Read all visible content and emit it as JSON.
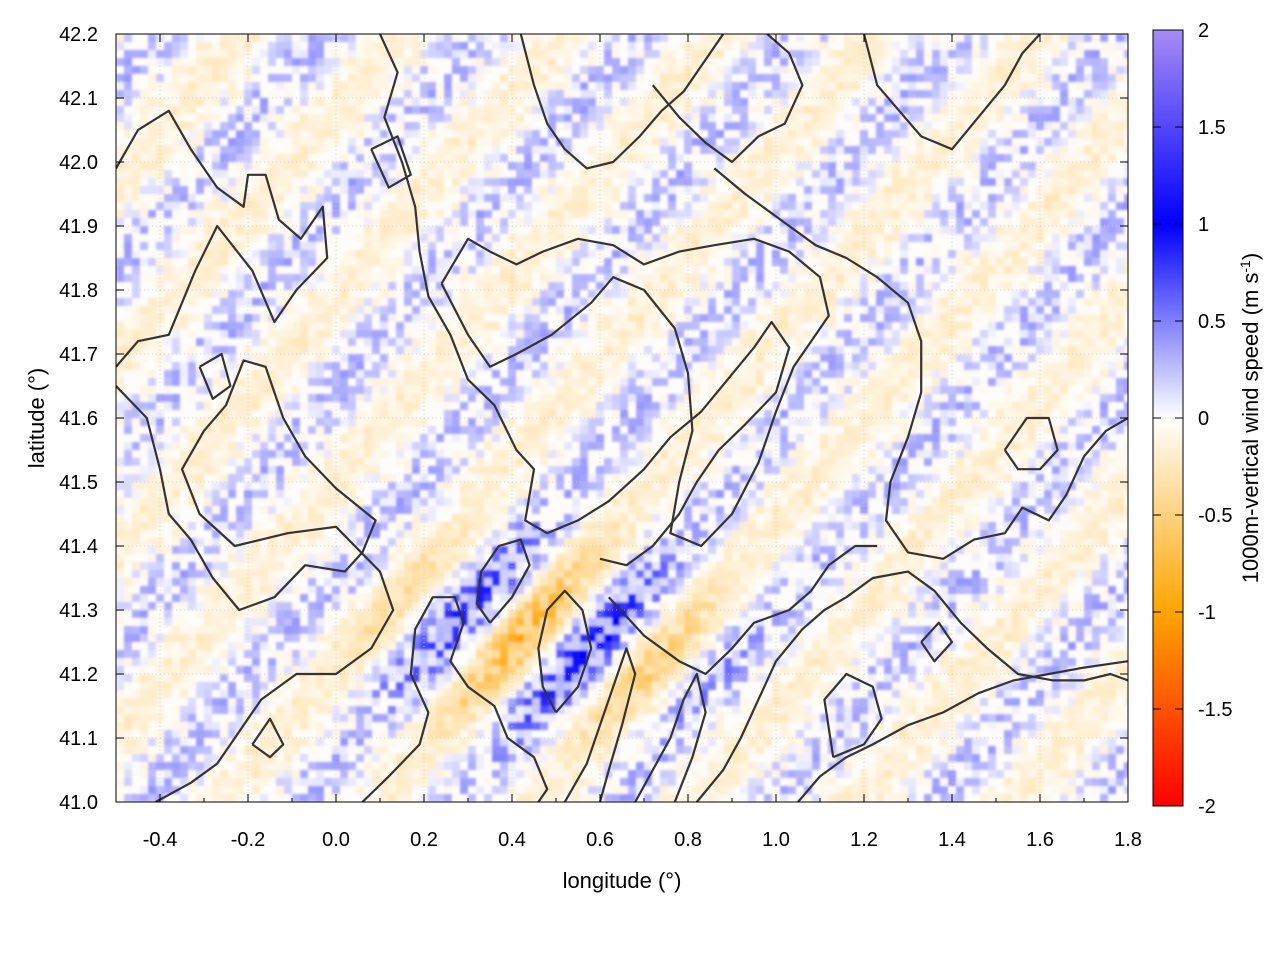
{
  "chart_data": {
    "type": "heatmap",
    "title": "",
    "xlabel": "longitude (°)",
    "ylabel": "latitude (°)",
    "colorbar_label_main": "1000m-vertical wind speed (m s",
    "colorbar_label_sup": "-1",
    "colorbar_label_tail": ")",
    "xlim": [
      -0.5,
      1.8
    ],
    "ylim": [
      41.0,
      42.2
    ],
    "clim": [
      -2,
      2
    ],
    "x_ticks": [
      -0.4,
      -0.2,
      0.0,
      0.2,
      0.4,
      0.6,
      0.8,
      1.0,
      1.2,
      1.4,
      1.6,
      1.8
    ],
    "x_tick_labels": [
      "-0.4",
      "-0.2",
      "0.0",
      "0.2",
      "0.4",
      "0.6",
      "0.8",
      "1.0",
      "1.2",
      "1.4",
      "1.6",
      "1.8"
    ],
    "y_ticks": [
      41.0,
      41.1,
      41.2,
      41.3,
      41.4,
      41.5,
      41.6,
      41.7,
      41.8,
      41.9,
      42.0,
      42.1,
      42.2
    ],
    "y_tick_labels": [
      "41.0",
      "41.1",
      "41.2",
      "41.3",
      "41.4",
      "41.5",
      "41.6",
      "41.7",
      "41.8",
      "41.9",
      "42.0",
      "42.1",
      "42.2"
    ],
    "colorbar_ticks": [
      2,
      1.5,
      1,
      0.5,
      0,
      -0.5,
      -1,
      -1.5,
      -2
    ],
    "colorbar_tick_labels": [
      "2",
      "1.5",
      "1",
      "0.5",
      "0",
      "-0.5",
      "-1",
      "-1.5",
      "-2"
    ],
    "colormap": [
      {
        "value": -2,
        "color": "#ff0000"
      },
      {
        "value": -1,
        "color": "#ffa500"
      },
      {
        "value": 0,
        "color": "#ffffff"
      },
      {
        "value": 1,
        "color": "#0000ff"
      },
      {
        "value": 2,
        "color": "#a78bf5"
      }
    ],
    "grid": true,
    "contour_color": "#333333",
    "contours": [
      [
        [
          -0.5,
          41.99
        ],
        [
          -0.45,
          42.05
        ],
        [
          -0.38,
          42.08
        ],
        [
          -0.33,
          42.02
        ],
        [
          -0.27,
          41.96
        ],
        [
          -0.21,
          41.93
        ],
        [
          -0.2,
          41.98
        ],
        [
          -0.16,
          41.98
        ],
        [
          -0.13,
          41.91
        ],
        [
          -0.08,
          41.88
        ],
        [
          -0.03,
          41.93
        ],
        [
          -0.02,
          41.85
        ],
        [
          -0.09,
          41.8
        ],
        [
          -0.14,
          41.75
        ],
        [
          -0.19,
          41.83
        ],
        [
          -0.27,
          41.9
        ],
        [
          -0.32,
          41.83
        ],
        [
          -0.38,
          41.73
        ],
        [
          -0.45,
          41.72
        ],
        [
          -0.5,
          41.68
        ]
      ],
      [
        [
          -0.5,
          41.65
        ],
        [
          -0.43,
          41.6
        ],
        [
          -0.4,
          41.52
        ],
        [
          -0.38,
          41.45
        ],
        [
          -0.33,
          41.41
        ],
        [
          -0.28,
          41.35
        ],
        [
          -0.22,
          41.3
        ],
        [
          -0.14,
          41.32
        ],
        [
          -0.07,
          41.37
        ],
        [
          0.02,
          41.36
        ],
        [
          0.06,
          41.39
        ],
        [
          0.09,
          41.44
        ],
        [
          0.0,
          41.49
        ],
        [
          -0.07,
          41.54
        ],
        [
          -0.12,
          41.6
        ],
        [
          -0.16,
          41.68
        ],
        [
          -0.21,
          41.69
        ],
        [
          -0.25,
          41.62
        ],
        [
          -0.3,
          41.58
        ],
        [
          -0.35,
          41.52
        ],
        [
          -0.31,
          41.45
        ],
        [
          -0.23,
          41.4
        ],
        [
          -0.11,
          41.42
        ],
        [
          0.0,
          41.43
        ],
        [
          0.1,
          41.36
        ],
        [
          0.13,
          41.3
        ],
        [
          0.08,
          41.24
        ],
        [
          0.0,
          41.2
        ],
        [
          -0.09,
          41.2
        ],
        [
          -0.17,
          41.16
        ],
        [
          -0.22,
          41.11
        ],
        [
          -0.27,
          41.06
        ],
        [
          -0.33,
          41.03
        ],
        [
          -0.41,
          41.0
        ]
      ],
      [
        [
          0.06,
          41.0
        ],
        [
          0.12,
          41.04
        ],
        [
          0.19,
          41.09
        ],
        [
          0.21,
          41.14
        ],
        [
          0.17,
          41.2
        ],
        [
          0.18,
          41.27
        ],
        [
          0.22,
          41.32
        ],
        [
          0.27,
          41.32
        ],
        [
          0.29,
          41.28
        ],
        [
          0.26,
          41.22
        ],
        [
          0.3,
          41.18
        ],
        [
          0.36,
          41.15
        ],
        [
          0.39,
          41.1
        ],
        [
          0.45,
          41.07
        ],
        [
          0.48,
          41.02
        ],
        [
          0.46,
          41.0
        ]
      ],
      [
        [
          0.1,
          42.2
        ],
        [
          0.14,
          42.14
        ],
        [
          0.11,
          42.07
        ],
        [
          0.15,
          42.0
        ],
        [
          0.18,
          41.93
        ],
        [
          0.19,
          41.86
        ],
        [
          0.21,
          41.79
        ],
        [
          0.26,
          41.73
        ],
        [
          0.3,
          41.66
        ],
        [
          0.36,
          41.62
        ],
        [
          0.41,
          41.55
        ],
        [
          0.45,
          41.52
        ],
        [
          0.43,
          41.44
        ],
        [
          0.48,
          41.42
        ],
        [
          0.55,
          41.44
        ],
        [
          0.62,
          41.47
        ],
        [
          0.7,
          41.52
        ],
        [
          0.76,
          41.57
        ],
        [
          0.83,
          41.61
        ],
        [
          0.89,
          41.66
        ],
        [
          0.95,
          41.71
        ],
        [
          0.99,
          41.75
        ],
        [
          1.03,
          41.71
        ],
        [
          1.0,
          41.64
        ],
        [
          0.93,
          41.59
        ],
        [
          0.87,
          41.55
        ],
        [
          0.82,
          41.5
        ],
        [
          0.78,
          41.45
        ],
        [
          0.72,
          41.4
        ],
        [
          0.66,
          41.37
        ],
        [
          0.6,
          41.38
        ]
      ],
      [
        [
          0.24,
          41.81
        ],
        [
          0.3,
          41.73
        ],
        [
          0.35,
          41.68
        ],
        [
          0.41,
          41.7
        ],
        [
          0.49,
          41.73
        ],
        [
          0.58,
          41.78
        ],
        [
          0.63,
          41.82
        ],
        [
          0.7,
          41.8
        ],
        [
          0.77,
          41.74
        ],
        [
          0.8,
          41.67
        ],
        [
          0.81,
          41.58
        ],
        [
          0.78,
          41.5
        ],
        [
          0.76,
          41.42
        ],
        [
          0.83,
          41.4
        ],
        [
          0.9,
          41.45
        ],
        [
          0.96,
          41.53
        ],
        [
          1.0,
          41.61
        ],
        [
          1.04,
          41.68
        ],
        [
          1.08,
          41.72
        ],
        [
          1.12,
          41.76
        ],
        [
          1.1,
          41.82
        ],
        [
          1.03,
          41.86
        ],
        [
          0.95,
          41.88
        ],
        [
          0.86,
          41.87
        ],
        [
          0.78,
          41.86
        ],
        [
          0.7,
          41.84
        ],
        [
          0.63,
          41.87
        ],
        [
          0.55,
          41.88
        ],
        [
          0.47,
          41.86
        ],
        [
          0.41,
          41.84
        ],
        [
          0.35,
          41.86
        ],
        [
          0.3,
          41.88
        ],
        [
          0.24,
          41.81
        ]
      ],
      [
        [
          0.86,
          41.99
        ],
        [
          0.93,
          41.95
        ],
        [
          1.01,
          41.91
        ],
        [
          1.09,
          41.87
        ],
        [
          1.16,
          41.85
        ],
        [
          1.23,
          41.82
        ],
        [
          1.3,
          41.78
        ],
        [
          1.33,
          41.72
        ],
        [
          1.33,
          41.64
        ],
        [
          1.3,
          41.57
        ],
        [
          1.26,
          41.5
        ],
        [
          1.25,
          41.44
        ],
        [
          1.3,
          41.39
        ],
        [
          1.38,
          41.38
        ],
        [
          1.45,
          41.41
        ],
        [
          1.52,
          41.42
        ],
        [
          1.56,
          41.46
        ],
        [
          1.62,
          41.44
        ],
        [
          1.66,
          41.48
        ],
        [
          1.7,
          41.54
        ],
        [
          1.75,
          41.58
        ],
        [
          1.8,
          41.6
        ]
      ],
      [
        [
          0.72,
          42.12
        ],
        [
          0.78,
          42.07
        ],
        [
          0.84,
          42.03
        ],
        [
          0.9,
          42.0
        ],
        [
          0.96,
          42.04
        ],
        [
          1.02,
          42.06
        ],
        [
          1.06,
          42.12
        ],
        [
          1.03,
          42.17
        ],
        [
          0.98,
          42.2
        ]
      ],
      [
        [
          1.2,
          42.2
        ],
        [
          1.23,
          42.12
        ],
        [
          1.28,
          42.08
        ],
        [
          1.33,
          42.04
        ],
        [
          1.4,
          42.02
        ],
        [
          1.46,
          42.07
        ],
        [
          1.52,
          42.12
        ],
        [
          1.56,
          42.17
        ],
        [
          1.6,
          42.2
        ]
      ],
      [
        [
          0.42,
          42.2
        ],
        [
          0.45,
          42.12
        ],
        [
          0.48,
          42.06
        ],
        [
          0.52,
          42.02
        ],
        [
          0.57,
          41.99
        ],
        [
          0.63,
          42.0
        ],
        [
          0.69,
          42.04
        ],
        [
          0.74,
          42.08
        ],
        [
          0.79,
          42.11
        ],
        [
          0.84,
          42.16
        ],
        [
          0.88,
          42.2
        ]
      ],
      [
        [
          0.62,
          41.32
        ],
        [
          0.7,
          41.26
        ],
        [
          0.78,
          41.22
        ],
        [
          0.84,
          41.2
        ],
        [
          0.9,
          41.24
        ],
        [
          0.95,
          41.28
        ],
        [
          1.03,
          41.3
        ],
        [
          1.08,
          41.33
        ],
        [
          1.12,
          41.37
        ],
        [
          1.18,
          41.4
        ],
        [
          1.23,
          41.4
        ]
      ],
      [
        [
          0.82,
          41.0
        ],
        [
          0.88,
          41.05
        ],
        [
          0.92,
          41.1
        ],
        [
          0.96,
          41.16
        ],
        [
          1.0,
          41.22
        ],
        [
          1.06,
          41.27
        ],
        [
          1.11,
          41.3
        ],
        [
          1.16,
          41.32
        ],
        [
          1.22,
          41.35
        ],
        [
          1.3,
          41.36
        ],
        [
          1.36,
          41.33
        ],
        [
          1.42,
          41.28
        ],
        [
          1.48,
          41.24
        ],
        [
          1.55,
          41.2
        ],
        [
          1.63,
          41.19
        ],
        [
          1.7,
          41.19
        ],
        [
          1.76,
          41.2
        ],
        [
          1.8,
          41.19
        ]
      ],
      [
        [
          1.05,
          41.0
        ],
        [
          1.1,
          41.04
        ],
        [
          1.16,
          41.07
        ],
        [
          1.22,
          41.09
        ],
        [
          1.3,
          41.12
        ],
        [
          1.38,
          41.14
        ],
        [
          1.46,
          41.17
        ],
        [
          1.54,
          41.19
        ],
        [
          1.62,
          41.2
        ],
        [
          1.7,
          41.21
        ],
        [
          1.8,
          41.22
        ]
      ],
      [
        [
          0.52,
          41.0
        ],
        [
          0.57,
          41.06
        ],
        [
          0.6,
          41.12
        ],
        [
          0.63,
          41.18
        ],
        [
          0.66,
          41.24
        ],
        [
          0.68,
          41.2
        ],
        [
          0.65,
          41.12
        ],
        [
          0.62,
          41.05
        ],
        [
          0.6,
          41.0
        ]
      ],
      [
        [
          0.68,
          41.0
        ],
        [
          0.72,
          41.05
        ],
        [
          0.76,
          41.1
        ],
        [
          0.79,
          41.16
        ],
        [
          0.82,
          41.2
        ],
        [
          0.84,
          41.14
        ],
        [
          0.81,
          41.07
        ],
        [
          0.77,
          41.0
        ]
      ],
      [
        [
          0.5,
          41.14
        ],
        [
          0.55,
          41.18
        ],
        [
          0.58,
          41.24
        ],
        [
          0.56,
          41.3
        ],
        [
          0.52,
          41.33
        ],
        [
          0.48,
          41.3
        ],
        [
          0.46,
          41.24
        ],
        [
          0.47,
          41.18
        ],
        [
          0.5,
          41.14
        ]
      ],
      [
        [
          0.35,
          41.28
        ],
        [
          0.4,
          41.32
        ],
        [
          0.44,
          41.37
        ],
        [
          0.42,
          41.41
        ],
        [
          0.37,
          41.4
        ],
        [
          0.33,
          41.36
        ],
        [
          0.32,
          41.31
        ],
        [
          0.35,
          41.28
        ]
      ],
      [
        [
          1.13,
          41.07
        ],
        [
          1.2,
          41.09
        ],
        [
          1.24,
          41.13
        ],
        [
          1.22,
          41.18
        ],
        [
          1.16,
          41.2
        ],
        [
          1.11,
          41.16
        ],
        [
          1.13,
          41.07
        ]
      ],
      [
        [
          1.52,
          41.55
        ],
        [
          1.57,
          41.6
        ],
        [
          1.62,
          41.6
        ],
        [
          1.64,
          41.55
        ],
        [
          1.6,
          41.52
        ],
        [
          1.55,
          41.52
        ],
        [
          1.52,
          41.55
        ]
      ],
      [
        [
          -0.31,
          41.68
        ],
        [
          -0.26,
          41.7
        ],
        [
          -0.24,
          41.65
        ],
        [
          -0.28,
          41.63
        ],
        [
          -0.31,
          41.68
        ]
      ],
      [
        [
          -0.19,
          41.09
        ],
        [
          -0.15,
          41.13
        ],
        [
          -0.12,
          41.09
        ],
        [
          -0.15,
          41.07
        ],
        [
          -0.19,
          41.09
        ]
      ],
      [
        [
          0.08,
          42.02
        ],
        [
          0.14,
          42.04
        ],
        [
          0.17,
          41.98
        ],
        [
          0.12,
          41.96
        ],
        [
          0.08,
          42.02
        ]
      ],
      [
        [
          1.33,
          41.25
        ],
        [
          1.37,
          41.28
        ],
        [
          1.4,
          41.25
        ],
        [
          1.36,
          41.22
        ],
        [
          1.33,
          41.25
        ]
      ]
    ]
  }
}
